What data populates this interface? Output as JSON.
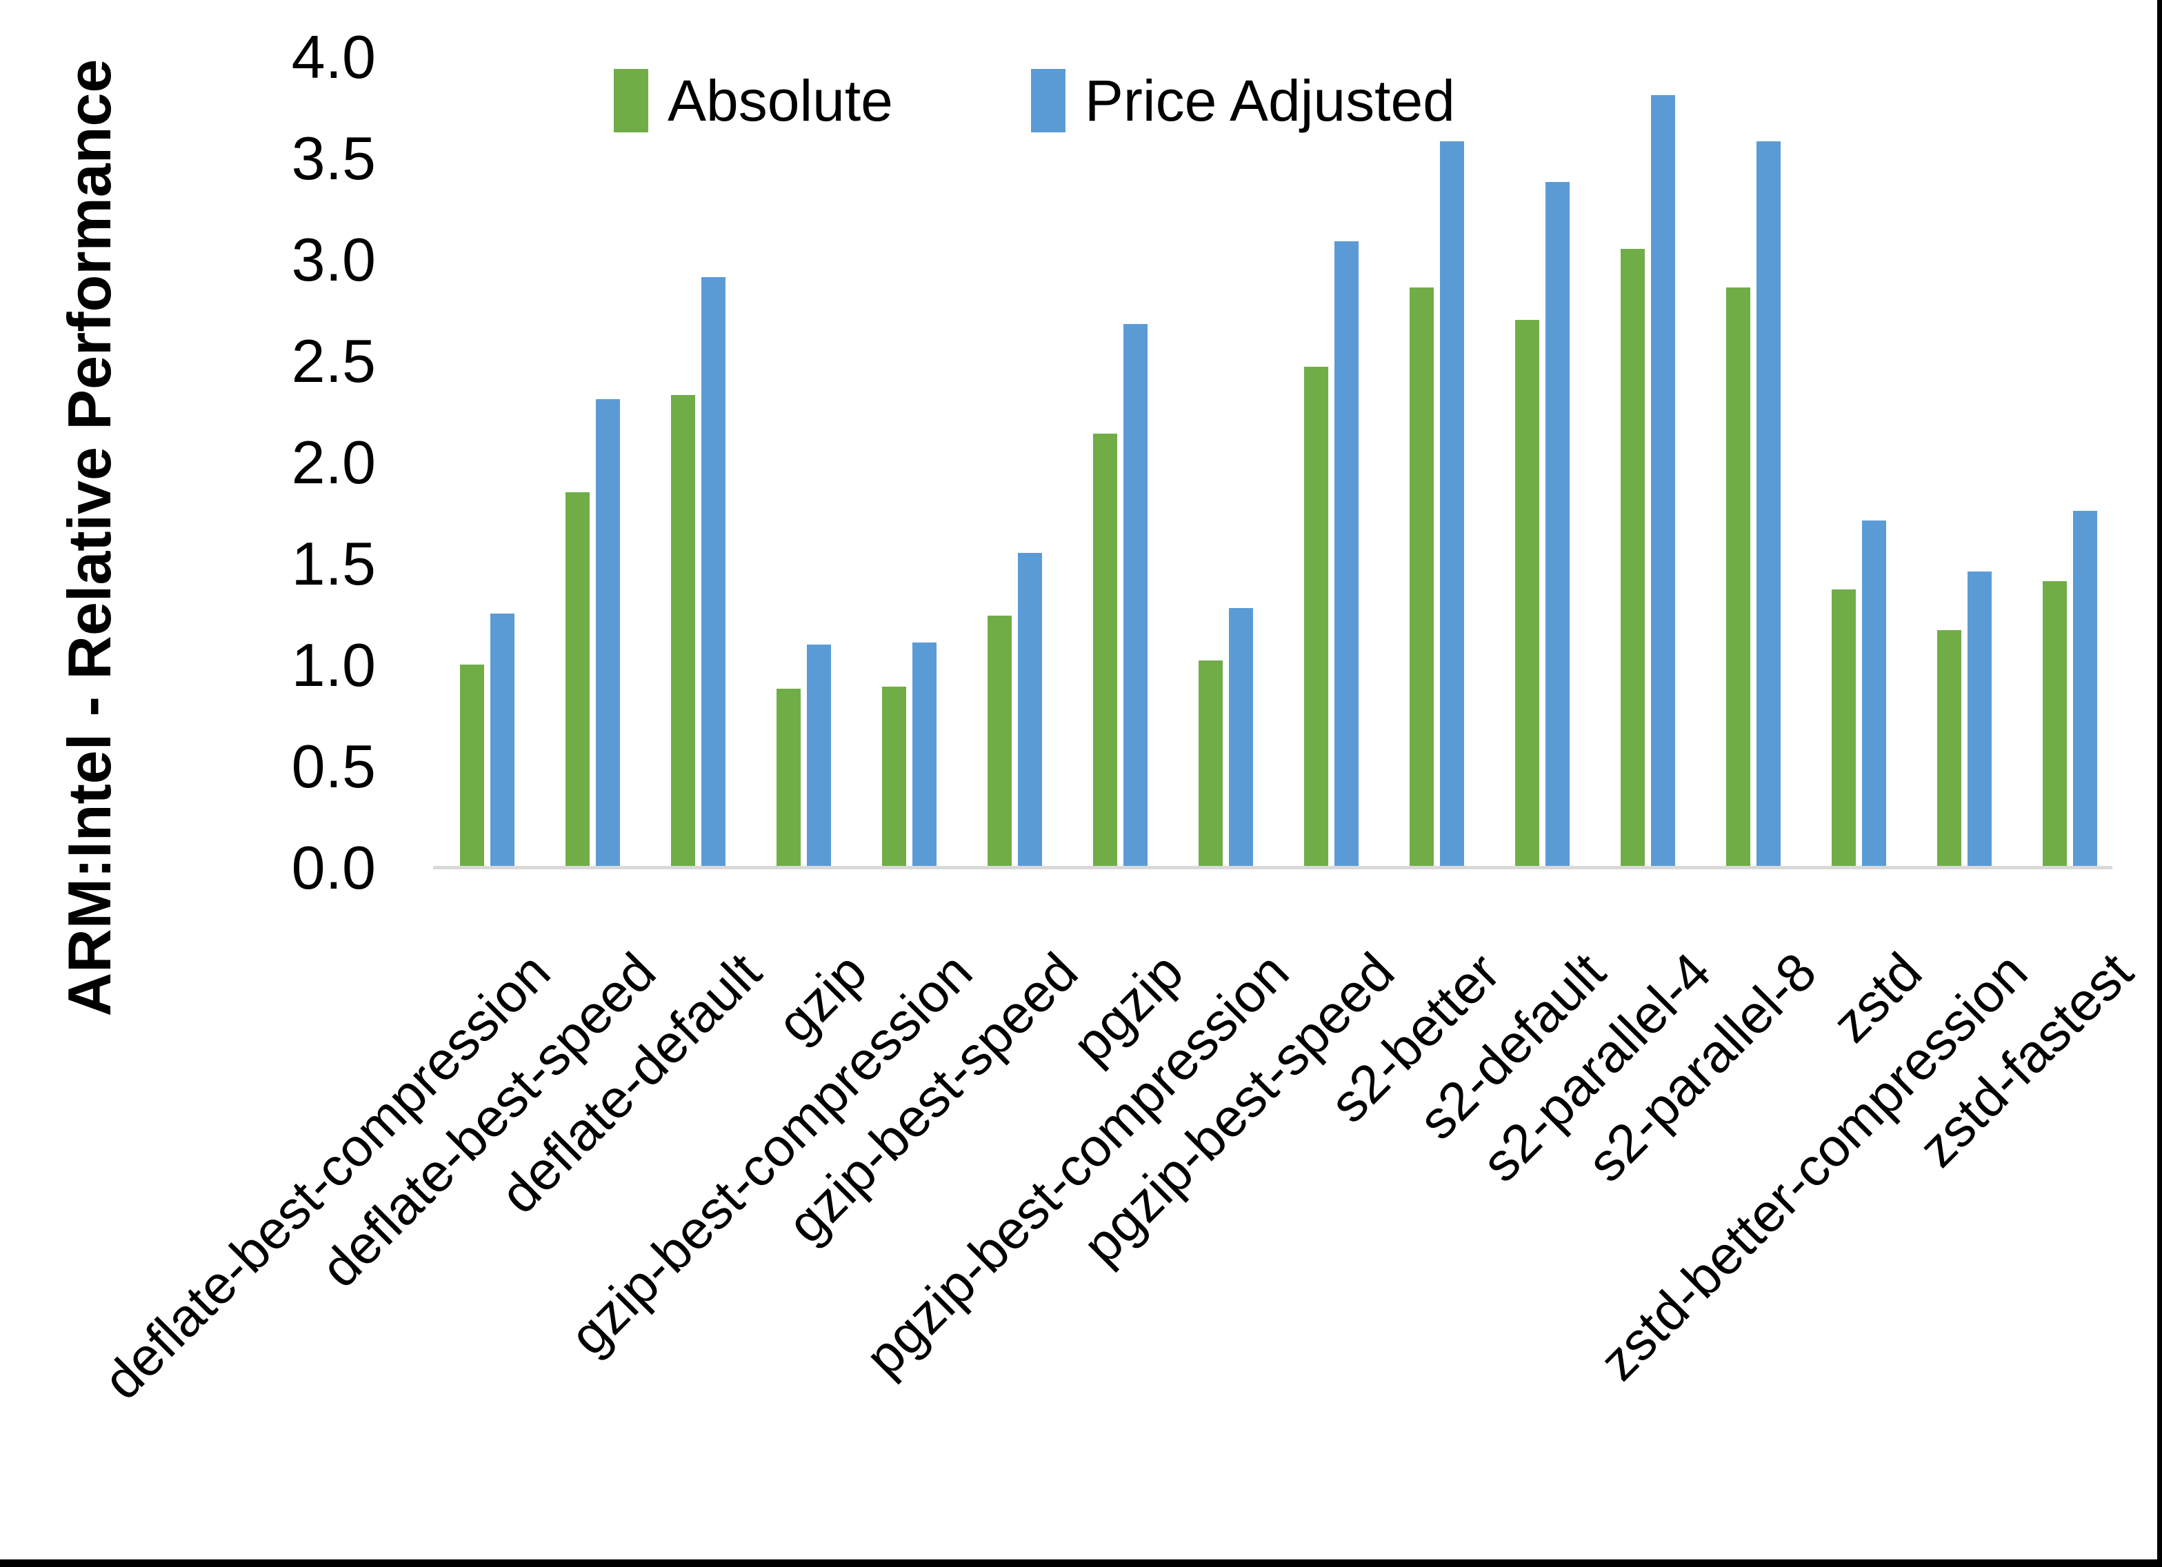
{
  "page": {
    "background": "#ffffff",
    "edge_color": "#000000"
  },
  "chart_data": {
    "type": "bar",
    "title": "",
    "xlabel": "",
    "ylabel": "ARM:Intel - Relative Performance",
    "ylim": [
      0.0,
      4.0
    ],
    "ytick_step": 0.5,
    "yticks": [
      "0.0",
      "0.5",
      "1.0",
      "1.5",
      "2.0",
      "2.5",
      "3.0",
      "3.5",
      "4.0"
    ],
    "grid": false,
    "legend_position": "top-center",
    "axis_line_color": "#D9D9D9",
    "categories": [
      "deflate-best-compression",
      "deflate-best-speed",
      "deflate-default",
      "gzip",
      "gzip-best-compression",
      "gzip-best-speed",
      "pgzip",
      "pgzip-best-compression",
      "pgzip-best-speed",
      "s2-better",
      "s2-default",
      "s2-parallel-4",
      "s2-parallel-8",
      "zstd",
      "zstd-better-compression",
      "zstd-fastest"
    ],
    "series": [
      {
        "name": "Absolute",
        "color": "#70AD47",
        "values": [
          1.0,
          1.85,
          2.33,
          0.88,
          0.89,
          1.24,
          2.14,
          1.02,
          2.47,
          2.86,
          2.7,
          3.05,
          2.86,
          1.37,
          1.17,
          1.41
        ]
      },
      {
        "name": "Price Adjusted",
        "color": "#5B9BD5",
        "values": [
          1.25,
          2.31,
          2.91,
          1.1,
          1.11,
          1.55,
          2.68,
          1.28,
          3.09,
          3.58,
          3.38,
          3.81,
          3.58,
          1.71,
          1.46,
          1.76
        ]
      }
    ]
  }
}
